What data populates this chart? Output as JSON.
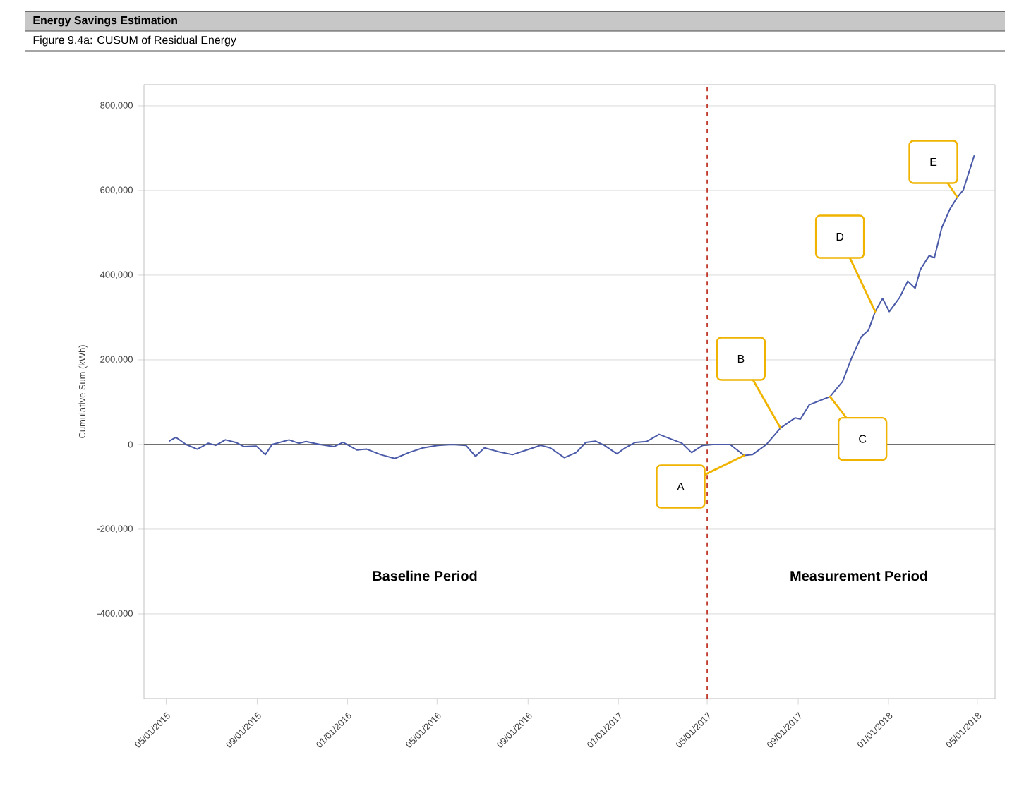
{
  "chart_data": {
    "type": "line",
    "title": "Energy Savings Estimation",
    "subtitle": "Figure 9.4a: CUSUM of Residual Energy",
    "ylabel": "Cumulative Sum (kWh)",
    "x": [
      "2015-05-05",
      "2015-05-14",
      "2015-05-28",
      "2015-06-12",
      "2015-06-27",
      "2015-07-07",
      "2015-07-20",
      "2015-08-03",
      "2015-08-14",
      "2015-08-31",
      "2015-09-12",
      "2015-09-21",
      "2015-10-14",
      "2015-10-27",
      "2015-11-06",
      "2015-11-25",
      "2015-12-14",
      "2015-12-26",
      "2016-01-14",
      "2016-01-27",
      "2016-02-15",
      "2016-03-05",
      "2016-03-24",
      "2016-04-12",
      "2016-05-02",
      "2016-05-21",
      "2016-06-09",
      "2016-06-22",
      "2016-07-04",
      "2016-07-23",
      "2016-08-11",
      "2016-08-30",
      "2016-09-18",
      "2016-10-01",
      "2016-10-20",
      "2016-11-05",
      "2016-11-18",
      "2016-12-01",
      "2016-12-13",
      "2016-12-30",
      "2017-01-10",
      "2017-01-24",
      "2017-02-08",
      "2017-02-25",
      "2017-03-16",
      "2017-03-28",
      "2017-04-10",
      "2017-04-25",
      "2017-05-09",
      "2017-06-01",
      "2017-06-20",
      "2017-07-01",
      "2017-07-20",
      "2017-08-08",
      "2017-08-28",
      "2017-09-04",
      "2017-09-16",
      "2017-10-05",
      "2017-10-14",
      "2017-10-31",
      "2017-11-12",
      "2017-11-25",
      "2017-12-05",
      "2017-12-14",
      "2017-12-24",
      "2018-01-02",
      "2018-01-16",
      "2018-01-27",
      "2018-02-06",
      "2018-02-13",
      "2018-02-25",
      "2018-03-04",
      "2018-03-14",
      "2018-03-25",
      "2018-04-04",
      "2018-04-12",
      "2018-04-27"
    ],
    "series": [
      {
        "color": "#4a5aa8",
        "values": [
          8000,
          17000,
          0,
          -11000,
          3000,
          -2000,
          11000,
          5000,
          -5000,
          -4000,
          -24000,
          0,
          11000,
          3000,
          7000,
          0,
          -5000,
          5000,
          -13000,
          -11000,
          -24000,
          -33000,
          -19000,
          -8000,
          -2000,
          0,
          -2000,
          -28000,
          -8000,
          -17000,
          -24000,
          -13000,
          -2000,
          -8000,
          -31000,
          -19000,
          5000,
          8000,
          -2000,
          -22000,
          -8000,
          5000,
          7000,
          24000,
          11000,
          3000,
          -19000,
          -2000,
          0,
          0,
          -26000,
          -24000,
          0,
          39000,
          63000,
          60000,
          94000,
          107000,
          113000,
          149000,
          204000,
          254000,
          270000,
          314000,
          345000,
          314000,
          347000,
          386000,
          369000,
          413000,
          446000,
          441000,
          512000,
          556000,
          584000,
          601000,
          683000
        ]
      }
    ],
    "xlim": [
      "2015-04-01",
      "2018-05-25"
    ],
    "xticks": [
      {
        "value": "2015-05-01",
        "label": "05/01/2015"
      },
      {
        "value": "2015-09-01",
        "label": "09/01/2015"
      },
      {
        "value": "2016-01-01",
        "label": "01/01/2016"
      },
      {
        "value": "2016-05-01",
        "label": "05/01/2016"
      },
      {
        "value": "2016-09-01",
        "label": "09/01/2016"
      },
      {
        "value": "2017-01-01",
        "label": "01/01/2017"
      },
      {
        "value": "2017-05-01",
        "label": "05/01/2017"
      },
      {
        "value": "2017-09-01",
        "label": "09/01/2017"
      },
      {
        "value": "2018-01-01",
        "label": "01/01/2018"
      },
      {
        "value": "2018-05-01",
        "label": "05/01/2018"
      }
    ],
    "ylim": [
      -600000,
      850000
    ],
    "yticks": [
      {
        "value": -400000,
        "label": "-400,000"
      },
      {
        "value": -200000,
        "label": "-200,000"
      },
      0,
      {
        "value": 200000,
        "label": "200,000"
      },
      {
        "value": 400000,
        "label": "400,000"
      },
      {
        "value": 600000,
        "label": "600,000"
      },
      {
        "value": 800000,
        "label": "800,000"
      }
    ],
    "grid": "y",
    "ref_lines": [
      {
        "axis": "x",
        "value": "2017-05-01",
        "color": "#c0392b",
        "line_style": "dashed"
      },
      {
        "axis": "y",
        "value": 0,
        "color": "#707070",
        "line_style": "solid"
      }
    ],
    "annotations": [
      {
        "text": "A",
        "x": "2017-06-20",
        "y": -26000
      },
      {
        "text": "B",
        "x": "2017-08-08",
        "y": 39000
      },
      {
        "text": "C",
        "x": "2017-10-14",
        "y": 113000
      },
      {
        "text": "D",
        "x": "2017-12-14",
        "y": 314000
      },
      {
        "text": "E",
        "x": "2018-04-04",
        "y": 584000
      },
      "Baseline Period",
      "Measurement Period"
    ]
  }
}
